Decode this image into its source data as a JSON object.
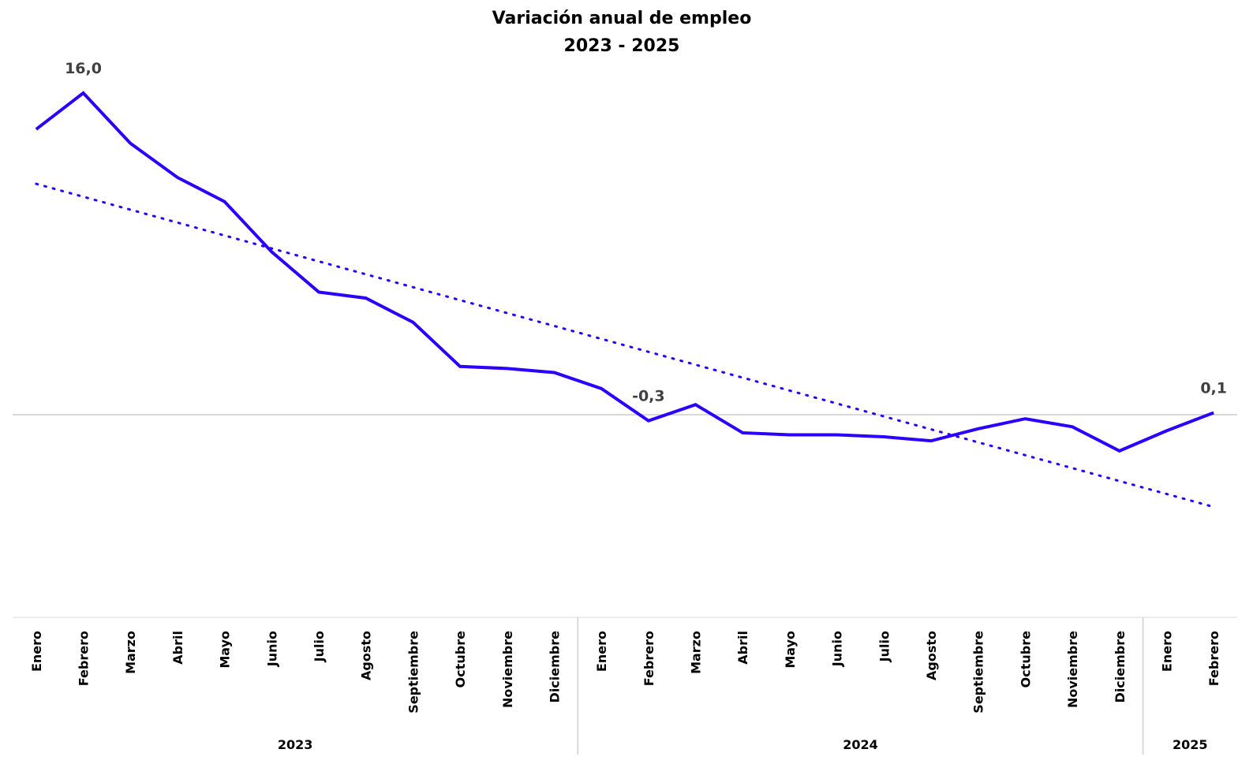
{
  "chart_data": {
    "type": "line",
    "title": "Variación anual de empleo",
    "subtitle": "2023 - 2025",
    "groups": [
      {
        "name": "2023",
        "categories": [
          "Enero",
          "Febrero",
          "Marzo",
          "Abril",
          "Mayo",
          "Junio",
          "Julio",
          "Agosto",
          "Septiembre",
          "Octubre",
          "Noviembre",
          "Diciembre"
        ]
      },
      {
        "name": "2024",
        "categories": [
          "Enero",
          "Febrero",
          "Marzo",
          "Abril",
          "Mayo",
          "Junio",
          "Julio",
          "Agosto",
          "Septiembre",
          "Octubre",
          "Noviembre",
          "Diciembre"
        ]
      },
      {
        "name": "2025",
        "categories": [
          "Enero",
          "Febrero"
        ]
      }
    ],
    "series": [
      {
        "name": "Variación anual",
        "color": "#2b00ff",
        "values": [
          14.2,
          16.0,
          13.5,
          11.8,
          10.6,
          8.1,
          6.1,
          5.8,
          4.6,
          2.4,
          2.3,
          2.1,
          1.3,
          -0.3,
          0.5,
          -0.9,
          -1.0,
          -1.0,
          -1.1,
          -1.3,
          -0.7,
          -0.2,
          -0.6,
          -1.8,
          -0.8,
          0.1
        ],
        "value_labels": [
          null,
          "16,0",
          null,
          null,
          null,
          null,
          null,
          null,
          null,
          null,
          null,
          null,
          null,
          "-0,3",
          null,
          null,
          null,
          null,
          null,
          null,
          null,
          null,
          null,
          null,
          null,
          "0,1"
        ]
      }
    ],
    "trendline": "linear",
    "ylim": [
      -9.5,
      17.5
    ]
  }
}
